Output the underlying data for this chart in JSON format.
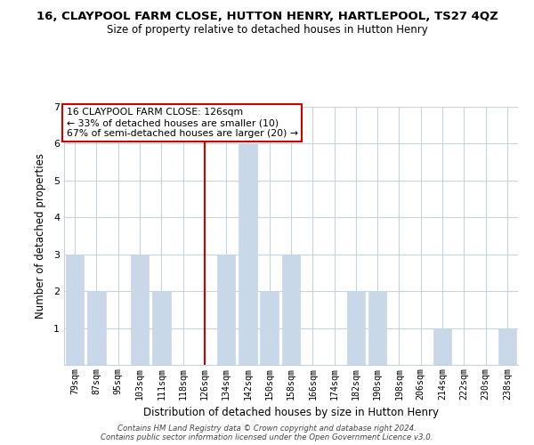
{
  "title": "16, CLAYPOOL FARM CLOSE, HUTTON HENRY, HARTLEPOOL, TS27 4QZ",
  "subtitle": "Size of property relative to detached houses in Hutton Henry",
  "xlabel": "Distribution of detached houses by size in Hutton Henry",
  "ylabel": "Number of detached properties",
  "footer_line1": "Contains HM Land Registry data © Crown copyright and database right 2024.",
  "footer_line2": "Contains public sector information licensed under the Open Government Licence v3.0.",
  "bar_labels": [
    "79sqm",
    "87sqm",
    "95sqm",
    "103sqm",
    "111sqm",
    "118sqm",
    "126sqm",
    "134sqm",
    "142sqm",
    "150sqm",
    "158sqm",
    "166sqm",
    "174sqm",
    "182sqm",
    "190sqm",
    "198sqm",
    "206sqm",
    "214sqm",
    "222sqm",
    "230sqm",
    "238sqm"
  ],
  "bar_values": [
    3,
    2,
    0,
    3,
    2,
    0,
    0,
    3,
    6,
    2,
    3,
    0,
    0,
    2,
    2,
    0,
    0,
    1,
    0,
    0,
    1
  ],
  "highlight_index": 6,
  "bar_color": "#c8d8e8",
  "highlight_line_color": "#cc0000",
  "annotation_title": "16 CLAYPOOL FARM CLOSE: 126sqm",
  "annotation_line1": "← 33% of detached houses are smaller (10)",
  "annotation_line2": "67% of semi-detached houses are larger (20) →",
  "ylim": [
    0,
    7
  ],
  "yticks": [
    0,
    1,
    2,
    3,
    4,
    5,
    6,
    7
  ],
  "background_color": "#ffffff",
  "grid_color": "#c8d4dc"
}
